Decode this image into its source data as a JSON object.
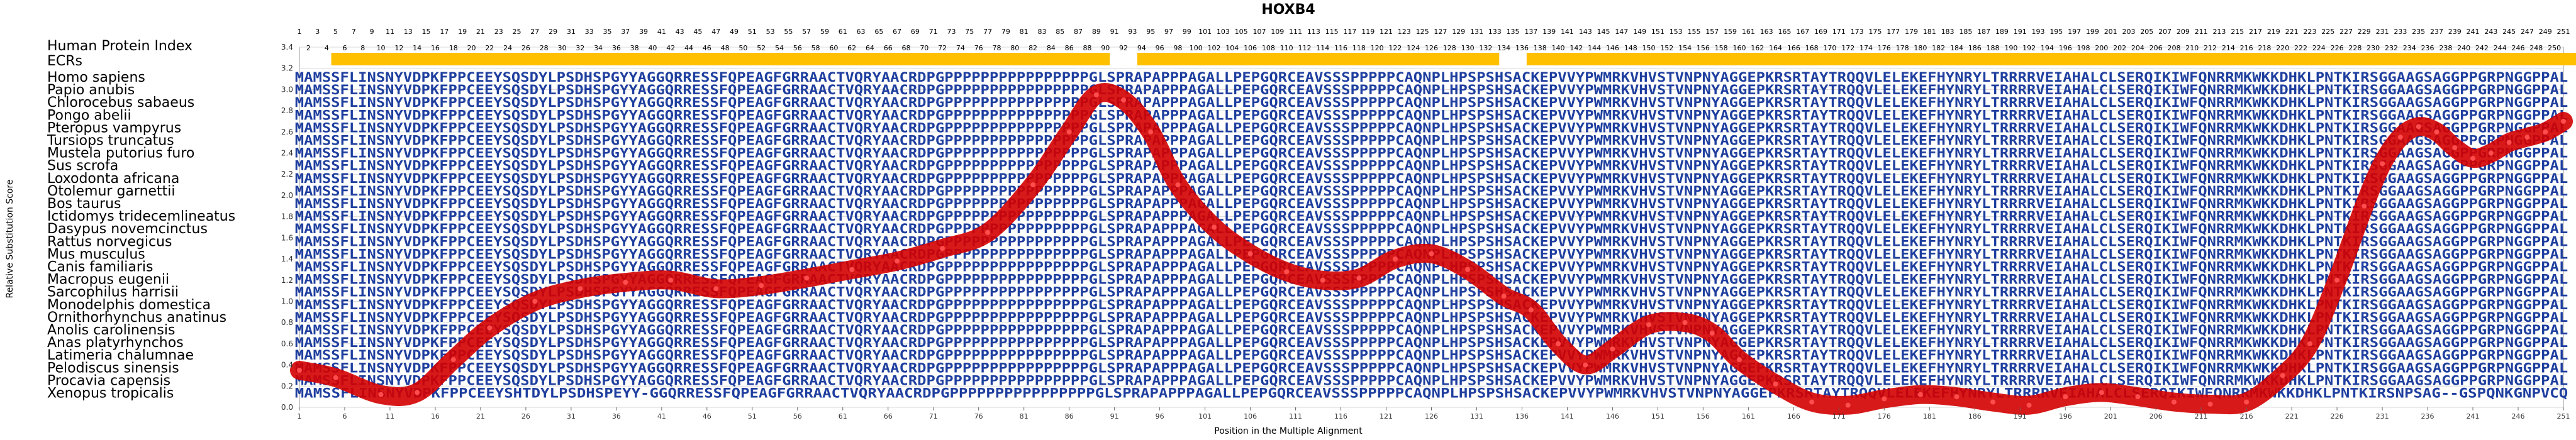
{
  "chart_data": {
    "type": "line",
    "title": "HOXB4",
    "xlabel": "Position in the Multiple Alignment",
    "ylabel": "Relative Substitution Score",
    "xlim": [
      1,
      251
    ],
    "ylim": [
      0.0,
      3.4
    ],
    "yticks": [
      "0.0",
      "0.2",
      "0.4",
      "0.6",
      "0.8",
      "1.0",
      "1.2",
      "1.4",
      "1.6",
      "1.8",
      "2.0",
      "2.2",
      "2.4",
      "2.6",
      "2.8",
      "3.0",
      "3.2",
      "3.4"
    ],
    "xticks": [
      1,
      6,
      11,
      16,
      21,
      26,
      31,
      36,
      41,
      46,
      51,
      56,
      61,
      66,
      71,
      76,
      81,
      86,
      91,
      96,
      101,
      106,
      111,
      116,
      121,
      126,
      131,
      136,
      141,
      146,
      151,
      156,
      161,
      166,
      171,
      176,
      181,
      186,
      191,
      196,
      201,
      206,
      211,
      216,
      221,
      226,
      231,
      236,
      241,
      246,
      251
    ],
    "top_ticks_row1": [
      1,
      3,
      5,
      7,
      9,
      11,
      13,
      15,
      17,
      19,
      21,
      23,
      25,
      27,
      29,
      31,
      33,
      35,
      37,
      39,
      41,
      43,
      45,
      47,
      49,
      51,
      53,
      55,
      57,
      59,
      61,
      63,
      65,
      67,
      69,
      71,
      73,
      75,
      77,
      79,
      81,
      83,
      85,
      87,
      89,
      91,
      93,
      95,
      97,
      99,
      101,
      103,
      105,
      107,
      109,
      111,
      113,
      115,
      117,
      119,
      121,
      123,
      125,
      127,
      129,
      131,
      133,
      135,
      137,
      139,
      141,
      143,
      145,
      147,
      149,
      151,
      153,
      155,
      157,
      159,
      161,
      163,
      165,
      167,
      169,
      171,
      173,
      175,
      177,
      179,
      181,
      183,
      185,
      187,
      189,
      191,
      193,
      195,
      197,
      199,
      201,
      203,
      205,
      207,
      209,
      211,
      213,
      215,
      217,
      219,
      221,
      223,
      225,
      227,
      229,
      231,
      233,
      235,
      237,
      239,
      241,
      243,
      245,
      247,
      249,
      251
    ],
    "top_ticks_row2": [
      2,
      4,
      6,
      8,
      10,
      12,
      14,
      16,
      18,
      20,
      22,
      24,
      26,
      28,
      30,
      32,
      34,
      36,
      38,
      40,
      42,
      44,
      46,
      48,
      50,
      52,
      54,
      56,
      58,
      60,
      62,
      64,
      66,
      68,
      70,
      72,
      74,
      76,
      78,
      80,
      82,
      84,
      86,
      88,
      90,
      92,
      94,
      96,
      98,
      100,
      102,
      104,
      106,
      108,
      110,
      112,
      114,
      116,
      118,
      120,
      122,
      124,
      126,
      128,
      130,
      132,
      134,
      136,
      138,
      140,
      142,
      144,
      146,
      148,
      150,
      152,
      154,
      156,
      158,
      160,
      162,
      164,
      166,
      168,
      170,
      172,
      174,
      176,
      178,
      180,
      182,
      184,
      186,
      188,
      190,
      192,
      194,
      196,
      198,
      200,
      202,
      204,
      206,
      208,
      210,
      212,
      214,
      216,
      218,
      220,
      222,
      224,
      226,
      228,
      230,
      232,
      234,
      236,
      238,
      240,
      242,
      244,
      246,
      248,
      250
    ],
    "series": [
      {
        "x": [
          1,
          5,
          10,
          14,
          18,
          22,
          27,
          32,
          37,
          42,
          47,
          52,
          57,
          62,
          67,
          72,
          77,
          82,
          86,
          89,
          92,
          95,
          98,
          102,
          106,
          110,
          114,
          118,
          122,
          126,
          130,
          134,
          137,
          140,
          143,
          146,
          150,
          154,
          157,
          160,
          164,
          168,
          172,
          176,
          180,
          184,
          188,
          192,
          196,
          200,
          204,
          208,
          212,
          216,
          220,
          223,
          226,
          229,
          231,
          233,
          235,
          237,
          239,
          241,
          243,
          245,
          247,
          249,
          251
        ],
        "y": [
          0.35,
          0.28,
          0.12,
          0.14,
          0.45,
          0.75,
          1.0,
          1.12,
          1.18,
          1.2,
          1.12,
          1.15,
          1.22,
          1.3,
          1.38,
          1.5,
          1.65,
          2.1,
          2.6,
          2.95,
          2.9,
          2.6,
          2.1,
          1.7,
          1.45,
          1.28,
          1.2,
          1.22,
          1.4,
          1.45,
          1.3,
          1.05,
          0.92,
          0.6,
          0.4,
          0.55,
          0.78,
          0.8,
          0.7,
          0.45,
          0.22,
          0.05,
          0.02,
          0.08,
          0.12,
          0.1,
          0.05,
          0.02,
          0.1,
          0.14,
          0.1,
          0.05,
          0.03,
          0.05,
          0.3,
          0.6,
          1.2,
          1.9,
          2.3,
          2.55,
          2.65,
          2.6,
          2.45,
          2.35,
          2.4,
          2.5,
          2.55,
          2.6,
          2.7
        ]
      }
    ],
    "ecr_bands": [
      [
        5,
        90
      ],
      [
        94,
        133
      ],
      [
        137,
        252
      ]
    ],
    "species_header": "Human Protein Index",
    "ecr_label": "ECRs",
    "species": [
      "Homo sapiens",
      "Papio anubis",
      "Chlorocebus sabaeus",
      "Pongo abelii",
      "Pteropus vampyrus",
      "Tursiops truncatus",
      "Mustela putorius furo",
      "Sus scrofa",
      "Loxodonta africana",
      "Otolemur garnettii",
      "Bos taurus",
      "Ictidomys tridecemlineatus",
      "Dasypus novemcinctus",
      "Rattus norvegicus",
      "Mus musculus",
      "Canis familiaris",
      "Macropus eugenii",
      "Sarcophilus harrisii",
      "Monodelphis domestica",
      "Ornithorhynchus anatinus",
      "Anolis carolinensis",
      "Anas platyrhynchos",
      "Latimeria chalumnae",
      "Pelodiscus sinensis",
      "Procavia capensis",
      "Xenopus tropicalis"
    ],
    "sequences": [
      "MAMSSFLINSNYVDPKFPPCEEYSQSDYLPSDHSPGYYAGGQRRESSFQPEAGFGRRAACTVQRYAACRDPGPPPPPPPPPPPPPPPPGLSPRAPAPPPAGALLPEPGQRCEAVSSSPPPPPCAQNPLHPSPSHSACKEPVVYPWMRKVHVSTVNPNYAGGEPKRSRTAYTRQQVLELEKEFHYNRYLTRRRRVEIAHALCLSERQIKIWFQNRRMKWKKDHKLPNTKIRSGGAAGSAGGPPGRPNGGPPAL",
      "MAMSSFLINSNYVDPKFPPCEEYSQSDYLPSDHSPGYYAGGQRRESSFQPEAGFGRRAACTVQRYAACRDPGPPPPPPPPPPPPPPPPGLSPRAPAPPPAGALLPEPGQRCEAVSSSPPPPPCAQNPLHPSPSHSACKEPVVYPWMRKVHVSTVNPNYAGGEPKRSRTAYTRQQVLELEKEFHYNRYLTRRRRVEIAHALCLSERQIKIWFQNRRMKWKKDHKLPNTKIRSGGAAGSAGGPPGRPNGGPPAL",
      "MAMSSFLINSNYVDPKFPPCEEYSQSDYLPSDHSPGYYAGGQRRESSFQPEAGFGRRAACTVQRYAACRDPGPPPPPPPPPPPPPPPPGLSPRAPAPPPAGALLPEPGQRCEAVSSSPPPPPCAQNPLHPSPSHSACKEPVVYPWMRKVHVSTVNPNYAGGEPKRSRTAYTRQQVLELEKEFHYNRYLTRRRRVEIAHALCLSERQIKIWFQNRRMKWKKDHKLPNTKIRSGGAAGSAGGPPGRPNGGPPAL",
      "MAMSSFLINSNYVDPKFPPCEEYSQSDYLPSDHSPGYYAGGQRRESSFQPEAGFGRRAACTVQRYAACRDPGPPPPPPPPPPPPPPPPGLSPRAPAPPPAGALLPEPGQRCEAVSSSPPPPPCAQNPLHPSPSHSACKEPVVYPWMRKVHVSTVNPNYAGGEPKRSRTAYTRQQVLELEKEFHYNRYLTRRRRVEIAHALCLSERQIKIWFQNRRMKWKKDHKLPNTKIRSGGAAGSAGGPPGRPNGGPPAL",
      "MAMSSFLINSNYVDPKFPPCEEYSQSDYLPSDHSPGYYAGGQRRESSFQPEAGFGRRAACTVQRYAACRDPGPPPPPPPPPPPPPPPPGLSPRAPAPPPAGALLPEPGQRCEAVSSSPPPPPCAQNPLHPSPSHSACKEPVVYPWMRKVHVSTVNPNYAGGEPKRSRTAYTRQQVLELEKEFHYNRYLTRRRRVEIAHALCLSERQIKIWFQNRRMKWKKDHKLPNTKIRSGGAAGSAGGPPGRPNGGPPAL",
      "MAMSSFLINSNYVDPKFPPCEEYSQSDYLPSDHSPGYYAGGQRRESSFQPEAGFGRRAACTVQRYAACRDPGPPPPPPPPPPPPPPPPGLSPRAPAPPPAGALLPEPGQRCEAVSSSPPPPPCAQNPLHPSPSHSACKEPVVYPWMRKVHVSTVNPNYAGGEPKRSRTAYTRQQVLELEKEFHYNRYLTRRRRVEIAHALCLSERQIKIWFQNRRMKWKKDHKLPNTKIRSGGAAGSAGGPPGRPNGGPPAL",
      "MAMSSFLINSNYVDPKFPPCEEYSQSDYLPSDHSPGYYAGGQRRESSFQPEAGFGRRAACTVQRYAACRDPGPPPPPPPPPPPPPPPPGLSPRAPAPPPAGALLPEPGQRCEAVSSSPPPPPCAQNPLHPSPSHSACKEPVVYPWMRKVHVSTVNPNYAGGEPKRSRTAYTRQQVLELEKEFHYNRYLTRRRRVEIAHALCLSERQIKIWFQNRRMKWKKDHKLPNTKIRSGGAAGSAGGPPGRPNGGPPAL",
      "MAMSSFLINSNYVDPKFPPCEEYSQSDYLPSDHSPGYYAGGQRRESSFQPEAGFGRRAACTVQRYAACRDPGPPPPPPPPPPPPPPPPGLSPRAPAPPPAGALLPEPGQRCEAVSSSPPPPPCAQNPLHPSPSHSACKEPVVYPWMRKVHVSTVNPNYAGGEPKRSRTAYTRQQVLELEKEFHYNRYLTRRRRVEIAHALCLSERQIKIWFQNRRMKWKKDHKLPNTKIRSGGAAGSAGGPPGRPNGGPPAL",
      "MAMSSFLINSNYVDPKFPPCEEYSQSDYLPSDHSPGYYAGGQRRESSFQPEAGFGRRAACTVQRYAACRDPGPPPPPPPPPPPPPPPPGLSPRAPAPPPAGALLPEPGQRCEAVSSSPPPPPCAQNPLHPSPSHSACKEPVVYPWMRKVHVSTVNPNYAGGEPKRSRTAYTRQQVLELEKEFHYNRYLTRRRRVEIAHALCLSERQIKIWFQNRRMKWKKDHKLPNTKIRSGGAAGSAGGPPGRPNGGPPAL",
      "MAMSSFLINSNYVDPKFPPCEEYSQSDYLPSDHSPGYYAGGQRRESSFQPEAGFGRRAACTVQRYAACRDPGPPPPPPPPPPPPPPPPGLSPRAPAPPPAGALLPEPGQRCEAVSSSPPPPPCAQNPLHPSPSHSACKEPVVYPWMRKVHVSTVNPNYAGGEPKRSRTAYTRQQVLELEKEFHYNRYLTRRRRVEIAHALCLSERQIKIWFQNRRMKWKKDHKLPNTKIRSGGAAGSAGGPPGRPNGGPPAL",
      "MAMSSFLINSNYVDPKFPPCEEYSQSDYLPSDHSPGYYAGGQRRESSFQPEAGFGRRAACTVQRYAACRDPGPPPPPPPPPPPPPPPPGLSPRAPAPPPAGALLPEPGQRCEAVSSSPPPPPCAQNPLHPSPSHSACKEPVVYPWMRKVHVSTVNPNYAGGEPKRSRTAYTRQQVLELEKEFHYNRYLTRRRRVEIAHALCLSERQIKIWFQNRRMKWKKDHKLPNTKIRSGGAAGSAGGPPGRPNGGPPAL",
      "MAMSSFLINSNYVDPKFPPCEEYSQSDYLPSDHSPGYYAGGQRRESSFQPEAGFGRRAACTVQRYAACRDPGPPPPPPPPPPPPPPPPGLSPRAPAPPPAGALLPEPGQRCEAVSSSPPPPPCAQNPLHPSPSHSACKEPVVYPWMRKVHVSTVNPNYAGGEPKRSRTAYTRQQVLELEKEFHYNRYLTRRRRVEIAHALCLSERQIKIWFQNRRMKWKKDHKLPNTKIRSGGAAGSAGGPPGRPNGGPPAL",
      "MAMSSFLINSNYVDPKFPPCEEYSQSDYLPSDHSPGYYAGGQRRESSFQPEAGFGRRAACTVQRYAACRDPGPPPPPPPPPPPPPPPPGLSPRAPAPPPAGALLPEPGQRCEAVSSSPPPPPCAQNPLHPSPSHSACKEPVVYPWMRKVHVSTVNPNYAGGEPKRSRTAYTRQQVLELEKEFHYNRYLTRRRRVEIAHALCLSERQIKIWFQNRRMKWKKDHKLPNTKIRSGGAAGSAGGPPGRPNGGPPAL",
      "MAMSSFLINSNYVDPKFPPCEEYSQSDYLPSDHSPGYYAGGQRRESSFQPEAGFGRRAACTVQRYAACRDPGPPPPPPPPPPPPPPPPGLSPRAPAPPPAGALLPEPGQRCEAVSSSPPPPPCAQNPLHPSPSHSACKEPVVYPWMRKVHVSTVNPNYAGGEPKRSRTAYTRQQVLELEKEFHYNRYLTRRRRVEIAHALCLSERQIKIWFQNRRMKWKKDHKLPNTKIRSGGAAGSAGGPPGRPNGGPPAL",
      "MAMSSFLINSNYVDPKFPPCEEYSQSDYLPSDHSPGYYAGGQRRESSFQPEAGFGRRAACTVQRYAACRDPGPPPPPPPPPPPPPPPPGLSPRAPAPPPAGALLPEPGQRCEAVSSSPPPPPCAQNPLHPSPSHSACKEPVVYPWMRKVHVSTVNPNYAGGEPKRSRTAYTRQQVLELEKEFHYNRYLTRRRRVEIAHALCLSERQIKIWFQNRRMKWKKDHKLPNTKIRSGGAAGSAGGPPGRPNGGPPAL",
      "MAMSSFLINSNYVDPKFPPCEEYSQSDYLPSDHSPGYYAGGQRRESSFQPEAGFGRRAACTVQRYAACRDPGPPPPPPPPPPPPPPPPGLSPRAPAPPPAGALLPEPGQRCEAVSSSPPPPPCAQNPLHPSPSHSACKEPVVYPWMRKVHVSTVNPNYAGGEPKRSRTAYTRQQVLELEKEFHYNRYLTRRRRVEIAHALCLSERQIKIWFQNRRMKWKKDHKLPNTKIRSGGAAGSAGGPPGRPNGGPPAL",
      "MAMSSFLINSNYVDPKFPPCEEYSQSDYLPSDHSPGYYAGGQRRESSFQPEAGFGRRAACTVQRYAACRDPGPPPPPPPPPPPPPPPPGLSPRAPAPPPAGALLPEPGQRCEAVSSSPPPPPCAQNPLHPSPSHSACKEPVVYPWMRKVHVSTVNPNYAGGEPKRSRTAYTRQQVLELEKEFHYNRYLTRRRRVEIAHALCLSERQIKIWFQNRRMKWKKDHKLPNTKIRSGGAAGSAGGPPGRPNGGPPAL",
      "MAMSSFLINSNYVDPKFPPCEEYSQSDYLPSDHSPGYYAGGQRRESSFQPEAGFGRRAACTVQRYAACRDPGPPPPPPPPPPPPPPPPGLSPRAPAPPPAGALLPEPGQRCEAVSSSPPPPPCAQNPLHPSPSHSACKEPVVYPWMRKVHVSTVNPNYAGGEPKRSRTAYTRQQVLELEKEFHYNRYLTRRRRVEIAHALCLSERQIKIWFQNRRMKWKKDHKLPNTKIRSGGAAGSAGGPPGRPNGGPPAL",
      "MAMSSFLINSNYVDPKFPPCEEYSQSDYLPSDHSPGYYAGGQRRESSFQPEAGFGRRAACTVQRYAACRDPGPPPPPPPPPPPPPPPPGLSPRAPAPPPAGALLPEPGQRCEAVSSSPPPPPCAQNPLHPSPSHSACKEPVVYPWMRKVHVSTVNPNYAGGEPKRSRTAYTRQQVLELEKEFHYNRYLTRRRRVEIAHALCLSERQIKIWFQNRRMKWKKDHKLPNTKIRSGGAAGSAGGPPGRPNGGPPAL",
      "MAMSSFLINSNYVDPKFPPCEEYSQSDYLPSDHSPGYYAGGQRRESSFQPEAGFGRRAACTVQRYAACRDPGPPPPPPPPPPPPPPPPGLSPRAPAPPPAGALLPEPGQRCEAVSSSPPPPPCAQNPLHPSPSHSACKEPVVYPWMRKVHVSTVNPNYAGGEPKRSRTAYTRQQVLELEKEFHYNRYLTRRRRVEIAHALCLSERQIKIWFQNRRMKWKKDHKLPNTKIRSGGAAGSAGGPPGRPNGGPPAL",
      "MAMSSFLINSNYVDPKFPPCEEYSQSDYLPSDHSPGYYAGGQRRESSFQPEAGFGRRAACTVQRYAACRDPGPPPPPPPPPPPPPPPPGLSPRAPAPPPAGALLPEPGQRCEAVSSSPPPPPCAQNPLHPSPSHSACKEPVVYPWMRKVHVSTVNPNYAGGEPKRSRTAYTRQQVLELEKEFHYNRYLTRRRRVEIAHALCLSERQIKIWFQNRRMKWKKDHKLPNTKIRSGGAAGSAGGPPGRPNGGPPAL",
      "MAMSSFLINSNYVDPKFPPCEEYSQSDYLPSDHSPGYYAGGQRRESSFQPEAGFGRRAACTVQRYAACRDPGPPPPPPPPPPPPPPPPGLSPRAPAPPPAGALLPEPGQRCEAVSSSPPPPPCAQNPLHPSPSHSACKEPVVYPWMRKVHVSTVNPNYAGGEPKRSRTAYTRQQVLELEKEFHYNRYLTRRRRVEIAHALCLSERQIKIWFQNRRMKWKKDHKLPNTKIRSGGAAGSAGGPPGRPNGGPPAL",
      "MAMSSFLINSNYVDPKFPPCEEYSQSDYLPSDHSPGYYAGGQRRESSFQPEAGFGRRAACTVQRYAACRDPGPPPPPPPPPPPPPPPPGLSPRAPAPPPAGALLPEPGQRCEAVSSSPPPPPCAQNPLHPSPSHSACKEPVVYPWMRKVHVSTVNPNYAGGEPKRSRTAYTRQQVLELEKEFHYNRYLTRRRRVEIAHALCLSERQIKIWFQNRRMKWKKDHKLPNTKIRSGGAAGSAGGPPGRPNGGPPAL",
      "MAMSSFLINSNYVDPKFPPCEEYSQSDYLPSDHSPGYYAGGQRRESSFQPEAGFGRRAACTVQRYAACRDPGPPPPPPPPPPPPPPPPGLSPRAPAPPPAGALLPEPGQRCEAVSSSPPPPPCAQNPLHPSPSHSACKEPVVYPWMRKVHVSTVNPNYAGGEPKRSRTAYTRQQVLELEKEFHYNRYLTRRRRVEIAHALCLSERQIKIWFQNRRMKWKKDHKLPNTKIRSGGAAGSAGGPPGRPNGGPPAL",
      "MAMSSFLINSNYVDPKFPPCEEYSQSDYLPSDHSPGYYAGGQRRESSFQPEAGFGRRAACTVQRYAACRDPGPPPPPPPPPPPPPPPPGLSPRAPAPPPAGALLPEPGQRCEAVSSSPPPPPCAQNPLHPSPSHSACKEPVVYPWMRKVHVSTVNPNYAGGEPKRSRTAYTRQQVLELEKEFHYNRYLTRRRRVEIAHALCLSERQIKIWFQNRRMKWKKDHKLPNTKIRSGGAAGSAGGPPGRPNGGPPAL",
      "MAMSSFLINSNYVDPKFPPCEEYSHTDYLPSDHSPEYY-GGQRRESSFQPEAGFGRRAACTVQRYAACRDPGPPPPPPPPPPPPPPPPGLSPRAPAPPPAGALLPEPGQRCEAVSSSPPPPPCAQNPLHPSPSHSACKEPVVYPWMRKVHVSTVNPNYAGGEPKRSRTAYTRQQVLELEKEFHYNRYLTRRRRVEIAHALCLSERQIKIWFQNRRMKWKKDHKLPNTKIRSNPSAG--GSPQNKGNPVCQ"
    ],
    "colors": {
      "line": "#d40000",
      "ecr_band": "#ffc000",
      "seq_text": "#1f3f9f",
      "seq_faded": "#4f9f8f",
      "grid": "#d9d9d9"
    }
  }
}
